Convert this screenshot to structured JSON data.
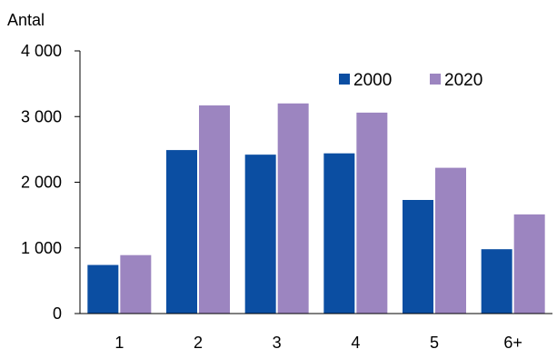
{
  "chart_data": {
    "type": "bar",
    "ylabel": "Antal",
    "ylim": [
      0,
      4000
    ],
    "yticks": [
      0,
      1000,
      2000,
      3000,
      4000
    ],
    "ytick_labels": [
      "0",
      "1 000",
      "2 000",
      "3 000",
      "4 000"
    ],
    "categories": [
      "1",
      "2",
      "3",
      "4",
      "5",
      "6+"
    ],
    "series": [
      {
        "name": "2000",
        "color": "#0b4ea2",
        "values": [
          740,
          2490,
          2420,
          2440,
          1730,
          980
        ]
      },
      {
        "name": "2020",
        "color": "#9c85c0",
        "values": [
          890,
          3170,
          3200,
          3060,
          2220,
          1510
        ]
      }
    ],
    "grid": false,
    "legend_position": "top-right"
  }
}
